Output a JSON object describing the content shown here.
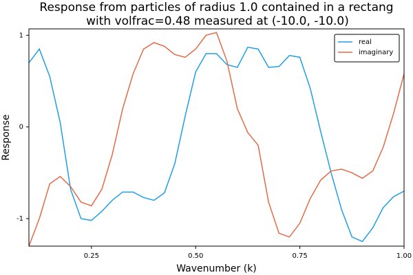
{
  "chart_data": {
    "type": "line",
    "title": [
      "Response from particles of radius 1.0 contained in a rectang",
      "with volfrac=0.48 measured at (-10.0, -10.0)"
    ],
    "xlabel": "Wavenumber (k)",
    "ylabel": "Response",
    "x": [
      0.1,
      0.125,
      0.15,
      0.175,
      0.2,
      0.225,
      0.25,
      0.275,
      0.3,
      0.325,
      0.35,
      0.375,
      0.4,
      0.425,
      0.45,
      0.475,
      0.5,
      0.525,
      0.55,
      0.575,
      0.6,
      0.625,
      0.65,
      0.675,
      0.7,
      0.725,
      0.75,
      0.775,
      0.8,
      0.825,
      0.85,
      0.875,
      0.9,
      0.925,
      0.95,
      0.975,
      1.0
    ],
    "series": [
      {
        "name": "real",
        "color": "#1f9ee8",
        "values": [
          0.7,
          0.85,
          0.55,
          0.05,
          -0.68,
          -1.0,
          -1.02,
          -0.92,
          -0.8,
          -0.71,
          -0.71,
          -0.77,
          -0.8,
          -0.72,
          -0.4,
          0.12,
          0.6,
          0.8,
          0.8,
          0.68,
          0.65,
          0.87,
          0.85,
          0.65,
          0.66,
          0.78,
          0.76,
          0.42,
          -0.05,
          -0.5,
          -0.9,
          -1.2,
          -1.25,
          -1.1,
          -0.88,
          -0.76,
          -0.7
        ]
      },
      {
        "name": "imaginary",
        "color": "#e26a46",
        "values": [
          -1.3,
          -1.0,
          -0.62,
          -0.54,
          -0.65,
          -0.82,
          -0.86,
          -0.68,
          -0.3,
          0.2,
          0.58,
          0.85,
          0.92,
          0.88,
          0.79,
          0.76,
          0.85,
          1.0,
          1.03,
          0.72,
          0.2,
          -0.06,
          -0.2,
          -0.82,
          -1.16,
          -1.2,
          -1.05,
          -0.78,
          -0.58,
          -0.48,
          -0.46,
          -0.5,
          -0.56,
          -0.48,
          -0.22,
          0.15,
          0.58
        ]
      }
    ],
    "xlim": [
      0.1,
      1.0
    ],
    "ylim": [
      -1.3,
      1.07
    ],
    "xticks": [
      {
        "value": 0.25,
        "label": "0.25"
      },
      {
        "value": 0.5,
        "label": "0.50"
      },
      {
        "value": 0.75,
        "label": "0.75"
      },
      {
        "value": 1.0,
        "label": "1.00"
      }
    ],
    "yticks": [
      -1,
      0,
      1
    ],
    "grid": false,
    "legend": "upper right"
  }
}
